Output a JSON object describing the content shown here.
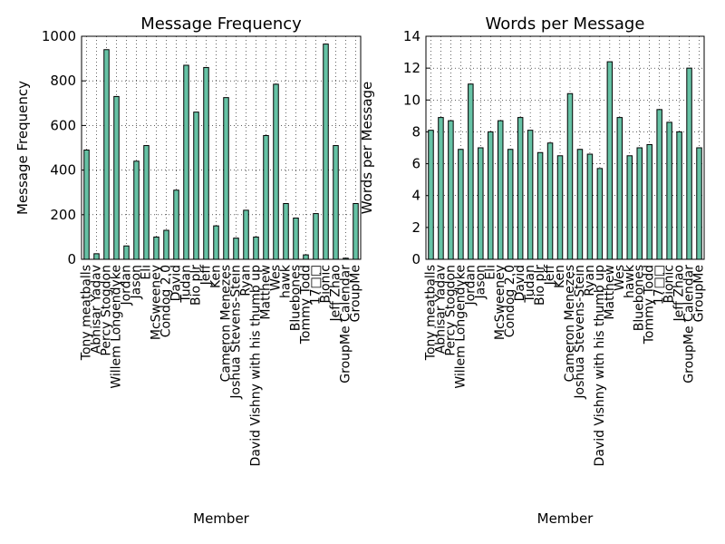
{
  "chart_data": [
    {
      "type": "bar",
      "title": "Message Frequency",
      "xlabel": "Member",
      "ylabel": "Message Frequency",
      "categories": [
        "Tony meatballs",
        "Abhisar Yadav",
        "Percy Stogdon",
        "Willem Longendyke",
        "Jordan",
        "Jason",
        "Eli",
        "McSweeney",
        "Condog 2.0",
        "David",
        "Tudan",
        "Bio plr",
        "Jeff",
        "Ken",
        "Cameron Menezes",
        "Joshua Stevens-Stein",
        "Ryan",
        "David Vishny with his thumb up",
        "Matthew",
        "Wes",
        "hawk",
        "Bluebones",
        "Tommy Todd",
        "17□□",
        "Bionic",
        "Jeff Zhao",
        "GroupMe Calendar",
        "GroupMe"
      ],
      "values": [
        490,
        25,
        940,
        730,
        60,
        440,
        510,
        100,
        130,
        310,
        870,
        660,
        860,
        150,
        725,
        95,
        220,
        100,
        555,
        785,
        250,
        185,
        20,
        205,
        965,
        510,
        5,
        250
      ],
      "color": "#66c2a5",
      "ylim": [
        0,
        1000
      ],
      "yticks": [
        0,
        200,
        400,
        600,
        800,
        1000
      ],
      "grid": true
    },
    {
      "type": "bar",
      "title": "Words per Message",
      "xlabel": "Member",
      "ylabel": "Words per Message",
      "categories": [
        "Tony meatballs",
        "Abhisar Yadav",
        "Percy Stogdon",
        "Willem Longendyke",
        "Jordan",
        "Jason",
        "Eli",
        "McSweeney",
        "Condog 2.0",
        "David",
        "Tudan",
        "Bio plr",
        "Jeff",
        "Ken",
        "Cameron Menezes",
        "Joshua Stevens-Stein",
        "Ryan",
        "David Vishny with his thumb up",
        "Matthew",
        "Wes",
        "hawk",
        "Bluebones",
        "Tommy Todd",
        "17□□",
        "Bionic",
        "Jeff Zhao",
        "GroupMe Calendar",
        "GroupMe"
      ],
      "values": [
        8.1,
        8.9,
        8.7,
        6.9,
        11.0,
        7.0,
        8.0,
        8.7,
        6.9,
        8.9,
        8.1,
        6.7,
        7.3,
        6.5,
        10.4,
        6.9,
        6.6,
        5.7,
        12.4,
        8.9,
        6.5,
        7.0,
        7.2,
        9.4,
        8.6,
        8.0,
        12.0,
        7.0
      ],
      "color": "#66c2a5",
      "ylim": [
        0,
        14
      ],
      "yticks": [
        0,
        2,
        4,
        6,
        8,
        10,
        12,
        14
      ],
      "grid": true
    }
  ]
}
